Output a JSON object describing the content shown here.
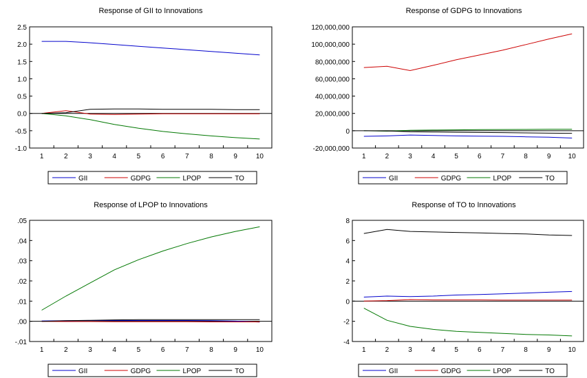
{
  "chart_data": [
    {
      "type": "line",
      "title": "Response of GII to Innovations",
      "x": [
        1,
        2,
        3,
        4,
        5,
        6,
        7,
        8,
        9,
        10
      ],
      "ylim": [
        -1.0,
        2.5
      ],
      "yticks": [
        "2.5",
        "2.0",
        "1.5",
        "1.0",
        "0.5",
        "0.0",
        "-0.5",
        "-1.0"
      ],
      "ytick_values": [
        2.5,
        2.0,
        1.5,
        1.0,
        0.5,
        0.0,
        -0.5,
        -1.0
      ],
      "grid": false,
      "legend": "bottom",
      "series": [
        {
          "name": "GII",
          "color": "#0000cc",
          "values": [
            2.08,
            2.08,
            2.04,
            1.99,
            1.94,
            1.89,
            1.84,
            1.79,
            1.74,
            1.69
          ]
        },
        {
          "name": "GDPG",
          "color": "#cc0000",
          "values": [
            0.0,
            0.08,
            -0.02,
            -0.03,
            -0.02,
            -0.01,
            -0.01,
            -0.01,
            -0.01,
            -0.01
          ]
        },
        {
          "name": "LPOP",
          "color": "#007700",
          "values": [
            0.0,
            -0.07,
            -0.18,
            -0.32,
            -0.43,
            -0.52,
            -0.59,
            -0.65,
            -0.7,
            -0.74
          ]
        },
        {
          "name": "TO",
          "color": "#000000",
          "values": [
            0.0,
            0.02,
            0.12,
            0.13,
            0.13,
            0.12,
            0.12,
            0.12,
            0.11,
            0.11
          ]
        }
      ]
    },
    {
      "type": "line",
      "title": "Response of GDPG to Innovations",
      "x": [
        1,
        2,
        3,
        4,
        5,
        6,
        7,
        8,
        9,
        10
      ],
      "ylim": [
        -20000000,
        120000000
      ],
      "yticks": [
        "120,000,000",
        "100,000,000",
        "80,000,000",
        "60,000,000",
        "40,000,000",
        "20,000,000",
        "0",
        "-20,000,000"
      ],
      "ytick_values": [
        120000000,
        100000000,
        80000000,
        60000000,
        40000000,
        20000000,
        0,
        -20000000
      ],
      "grid": false,
      "legend": "bottom",
      "series": [
        {
          "name": "GII",
          "color": "#0000cc",
          "values": [
            -6500000,
            -6000000,
            -5000000,
            -5500000,
            -6000000,
            -6200000,
            -6500000,
            -7000000,
            -7500000,
            -8500000
          ]
        },
        {
          "name": "GDPG",
          "color": "#cc0000",
          "values": [
            73000000,
            74500000,
            69500000,
            75500000,
            82000000,
            87500000,
            93000000,
            99500000,
            106000000,
            112000000
          ]
        },
        {
          "name": "LPOP",
          "color": "#007700",
          "values": [
            0,
            -500000,
            500000,
            800000,
            1000000,
            1200000,
            1400000,
            1500000,
            1600000,
            1700000
          ]
        },
        {
          "name": "TO",
          "color": "#000000",
          "values": [
            0,
            -200000,
            -1200000,
            -1500000,
            -1800000,
            -2000000,
            -2200000,
            -2500000,
            -2800000,
            -3000000
          ]
        }
      ]
    },
    {
      "type": "line",
      "title": "Response of LPOP to Innovations",
      "x": [
        1,
        2,
        3,
        4,
        5,
        6,
        7,
        8,
        9,
        10
      ],
      "ylim": [
        -0.01,
        0.05
      ],
      "yticks": [
        ".05",
        ".04",
        ".03",
        ".02",
        ".01",
        ".00",
        "-.01"
      ],
      "ytick_values": [
        0.05,
        0.04,
        0.03,
        0.02,
        0.01,
        0.0,
        -0.01
      ],
      "grid": false,
      "legend": "bottom",
      "series": [
        {
          "name": "GII",
          "color": "#0000cc",
          "values": [
            0.0002,
            0.0003,
            0.0004,
            0.0004,
            0.0004,
            0.0004,
            0.0004,
            0.0003,
            0.0001,
            -0.0004
          ]
        },
        {
          "name": "GDPG",
          "color": "#cc0000",
          "values": [
            0.0,
            -0.0001,
            -0.0001,
            -0.0002,
            -0.0002,
            -0.0002,
            -0.0002,
            -0.0003,
            -0.0003,
            -0.0003
          ]
        },
        {
          "name": "LPOP",
          "color": "#007700",
          "values": [
            0.0055,
            0.0125,
            0.019,
            0.0255,
            0.0305,
            0.0348,
            0.0385,
            0.0418,
            0.0445,
            0.0468
          ]
        },
        {
          "name": "TO",
          "color": "#000000",
          "values": [
            0.0,
            0.0003,
            0.0005,
            0.0007,
            0.0008,
            0.0008,
            0.0008,
            0.0008,
            0.0008,
            0.0008
          ]
        }
      ]
    },
    {
      "type": "line",
      "title": "Response of TO to Innovations",
      "x": [
        1,
        2,
        3,
        4,
        5,
        6,
        7,
        8,
        9,
        10
      ],
      "ylim": [
        -4,
        8
      ],
      "yticks": [
        "8",
        "6",
        "4",
        "2",
        "0",
        "-2",
        "-4"
      ],
      "ytick_values": [
        8,
        6,
        4,
        2,
        0,
        -2,
        -4
      ],
      "grid": false,
      "legend": "bottom",
      "series": [
        {
          "name": "GII",
          "color": "#0000cc",
          "values": [
            0.4,
            0.5,
            0.45,
            0.5,
            0.6,
            0.65,
            0.72,
            0.8,
            0.88,
            0.95
          ]
        },
        {
          "name": "GDPG",
          "color": "#cc0000",
          "values": [
            0.0,
            0.05,
            0.15,
            0.12,
            0.12,
            0.12,
            0.1,
            0.1,
            0.1,
            0.1
          ]
        },
        {
          "name": "LPOP",
          "color": "#007700",
          "values": [
            -0.7,
            -1.9,
            -2.5,
            -2.8,
            -3.0,
            -3.1,
            -3.2,
            -3.3,
            -3.35,
            -3.45
          ]
        },
        {
          "name": "TO",
          "color": "#000000",
          "values": [
            6.7,
            7.1,
            6.9,
            6.85,
            6.8,
            6.75,
            6.7,
            6.65,
            6.55,
            6.5
          ]
        }
      ]
    }
  ]
}
